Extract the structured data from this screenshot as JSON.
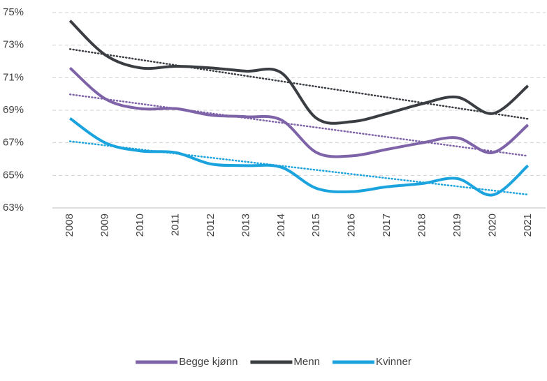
{
  "chart_data": {
    "type": "line",
    "categories": [
      "2008",
      "2009",
      "2010",
      "2011",
      "2012",
      "2013",
      "2014",
      "2015",
      "2016",
      "2017",
      "2018",
      "2019",
      "2020",
      "2021"
    ],
    "series": [
      {
        "name": "Begge kjønn",
        "color": "#7e63a8",
        "values": [
          71.6,
          69.7,
          69.1,
          69.1,
          68.7,
          68.6,
          68.4,
          66.4,
          66.2,
          66.6,
          67.0,
          67.3,
          66.4,
          68.1
        ]
      },
      {
        "name": "Menn",
        "color": "#3a3d42",
        "values": [
          74.5,
          72.4,
          71.6,
          71.7,
          71.6,
          71.4,
          71.3,
          68.5,
          68.3,
          68.8,
          69.4,
          69.8,
          68.8,
          70.5
        ]
      },
      {
        "name": "Kvinner",
        "color": "#1ba3dd",
        "values": [
          68.5,
          67.0,
          66.5,
          66.4,
          65.7,
          65.6,
          65.5,
          64.2,
          64.0,
          64.3,
          64.5,
          64.8,
          63.8,
          65.6
        ]
      }
    ],
    "ylim": [
      63,
      75
    ],
    "yticks": [
      {
        "value": 63,
        "label": "63%"
      },
      {
        "value": 65,
        "label": "65%"
      },
      {
        "value": 67,
        "label": "67%"
      },
      {
        "value": 69,
        "label": "69%"
      },
      {
        "value": 71,
        "label": "71%"
      },
      {
        "value": 73,
        "label": "73%"
      },
      {
        "value": 75,
        "label": "75%"
      }
    ],
    "grid": true,
    "smooth": true,
    "trendline": true,
    "legend": "bottom"
  }
}
